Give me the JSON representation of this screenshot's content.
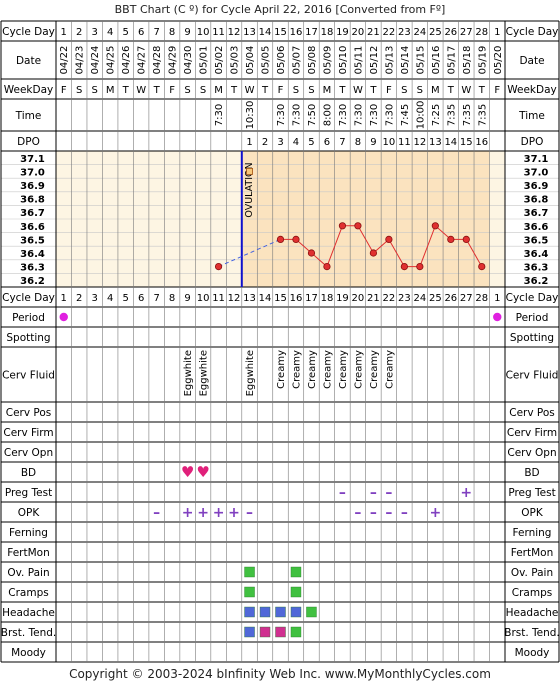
{
  "title": "BBT Chart (C º) for Cycle April 22, 2016  [Converted from Fº]",
  "footer": "Copyright © 2003-2024 bInfinity Web Inc.    www.MyMonthlyCycles.com",
  "row_labels": {
    "cycle_day": "Cycle Day",
    "date": "Date",
    "weekday": "WeekDay",
    "time": "Time",
    "dpo": "DPO",
    "period": "Period",
    "spotting": "Spotting",
    "cerv_fluid": "Cerv Fluid",
    "cerv_pos": "Cerv Pos",
    "cerv_firm": "Cerv Firm",
    "cerv_opn": "Cerv Opn",
    "bd": "BD",
    "preg_test": "Preg Test",
    "opk": "OPK",
    "ferning": "Ferning",
    "fertmon": "FertMon",
    "ov_pain": "Ov. Pain",
    "cramps": "Cramps",
    "headache": "Headache",
    "brst_tend": "Brst. Tend.",
    "moody": "Moody"
  },
  "colors": {
    "grid": "#000000",
    "chart_bg": "#fdf5e3",
    "post_ov_bg": "#fbe3bf",
    "ovulation_line": "#1010cc",
    "temp_line": "#e03030",
    "marker_fill": "#e03030",
    "dashed_line": "#4060e0",
    "period": "#e020e0",
    "bd_heart": "#e0207a",
    "opk": "#8040c0",
    "preg": "#8040c0",
    "green_square": "#40c040",
    "blue_square": "#5068d8",
    "pink_square": "#d03090"
  },
  "chart_data": {
    "type": "line",
    "title": "BBT Chart (C º) for Cycle April 22, 2016  [Converted from Fº]",
    "xlabel": "Cycle Day",
    "ylabel": "",
    "ylim": [
      36.2,
      37.1
    ],
    "y_ticks": [
      "37.1",
      "37.0",
      "36.9",
      "36.8",
      "36.7",
      "36.6",
      "36.5",
      "36.4",
      "36.3",
      "36.2"
    ],
    "x": [
      1,
      2,
      3,
      4,
      5,
      6,
      7,
      8,
      9,
      10,
      11,
      12,
      13,
      14,
      15,
      16,
      17,
      18,
      19,
      20,
      21,
      22,
      23,
      24,
      25,
      26,
      27,
      28,
      1
    ],
    "dates": [
      "04/22",
      "04/23",
      "04/24",
      "04/25",
      "04/26",
      "04/27",
      "04/28",
      "04/29",
      "04/30",
      "05/01",
      "05/02",
      "05/03",
      "05/04",
      "05/05",
      "05/06",
      "05/07",
      "05/08",
      "05/09",
      "05/10",
      "05/11",
      "05/12",
      "05/13",
      "05/14",
      "05/15",
      "05/16",
      "05/17",
      "05/18",
      "05/19",
      "05/20"
    ],
    "weekdays": [
      "F",
      "S",
      "S",
      "M",
      "T",
      "W",
      "T",
      "F",
      "S",
      "S",
      "M",
      "T",
      "W",
      "T",
      "F",
      "S",
      "S",
      "M",
      "T",
      "W",
      "T",
      "F",
      "S",
      "S",
      "M",
      "T",
      "W",
      "T",
      "F"
    ],
    "times": [
      "",
      "",
      "",
      "",
      "",
      "",
      "",
      "",
      "",
      "",
      "7:30",
      "",
      "10:30",
      "",
      "7:30",
      "7:30",
      "7:50",
      "8:00",
      "7:30",
      "7:30",
      "7:30",
      "7:30",
      "7:45",
      "10:00",
      "7:25",
      "7:35",
      "7:35",
      "7:35",
      ""
    ],
    "dpo": [
      "",
      "",
      "",
      "",
      "",
      "",
      "",
      "",
      "",
      "",
      "",
      "",
      "1",
      "2",
      "3",
      "4",
      "5",
      "6",
      "7",
      "8",
      "9",
      "10",
      "11",
      "12",
      "13",
      "14",
      "15",
      "16",
      ""
    ],
    "series": [
      {
        "values": [
          null,
          null,
          null,
          null,
          null,
          null,
          null,
          null,
          null,
          null,
          36.3,
          null,
          null,
          null,
          36.5,
          36.5,
          36.4,
          36.3,
          36.6,
          36.6,
          36.4,
          36.5,
          36.3,
          36.3,
          36.6,
          36.5,
          36.5,
          36.3,
          null
        ]
      }
    ],
    "open_markers": [
      {
        "day": 13,
        "value": 37.0
      }
    ],
    "ovulation_day": 12,
    "ovulation_label": "OVULATION",
    "grid": true
  },
  "observations": {
    "period_days": [
      1,
      29
    ],
    "cerv_fluid": [
      {
        "day": 9,
        "label": "Eggwhite"
      },
      {
        "day": 10,
        "label": "Eggwhite"
      },
      {
        "day": 13,
        "label": "Eggwhite"
      },
      {
        "day": 15,
        "label": "Creamy"
      },
      {
        "day": 16,
        "label": "Creamy"
      },
      {
        "day": 17,
        "label": "Creamy"
      },
      {
        "day": 18,
        "label": "Creamy"
      },
      {
        "day": 19,
        "label": "Creamy"
      },
      {
        "day": 20,
        "label": "Creamy"
      },
      {
        "day": 21,
        "label": "Creamy"
      },
      {
        "day": 22,
        "label": "Creamy"
      }
    ],
    "bd_days": [
      9,
      10
    ],
    "preg_test": [
      {
        "day": 19,
        "symbol": "–"
      },
      {
        "day": 21,
        "symbol": "–"
      },
      {
        "day": 22,
        "symbol": "–"
      },
      {
        "day": 27,
        "symbol": "+"
      }
    ],
    "opk": [
      {
        "day": 7,
        "symbol": "–"
      },
      {
        "day": 9,
        "symbol": "+"
      },
      {
        "day": 10,
        "symbol": "+"
      },
      {
        "day": 11,
        "symbol": "+"
      },
      {
        "day": 12,
        "symbol": "+"
      },
      {
        "day": 13,
        "symbol": "–"
      },
      {
        "day": 20,
        "symbol": "–"
      },
      {
        "day": 21,
        "symbol": "–"
      },
      {
        "day": 22,
        "symbol": "–"
      },
      {
        "day": 23,
        "symbol": "–"
      },
      {
        "day": 25,
        "symbol": "+"
      }
    ],
    "ov_pain_days": [
      13,
      16
    ],
    "cramps_days": [
      13,
      16
    ],
    "headache": [
      {
        "day": 13,
        "color": "blue"
      },
      {
        "day": 14,
        "color": "blue"
      },
      {
        "day": 15,
        "color": "blue"
      },
      {
        "day": 16,
        "color": "blue"
      },
      {
        "day": 17,
        "color": "green"
      }
    ],
    "brst_tend": [
      {
        "day": 13,
        "color": "blue"
      },
      {
        "day": 14,
        "color": "pink"
      },
      {
        "day": 15,
        "color": "pink"
      },
      {
        "day": 16,
        "color": "green"
      }
    ]
  }
}
